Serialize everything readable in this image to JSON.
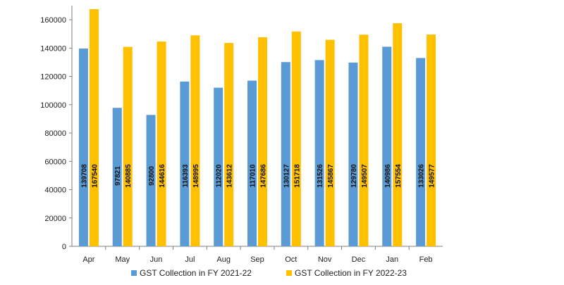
{
  "chart_data": {
    "type": "bar",
    "categories": [
      "Apr",
      "May",
      "Jun",
      "Jul",
      "Aug",
      "Sep",
      "Oct",
      "Nov",
      "Dec",
      "Jan",
      "Feb"
    ],
    "series": [
      {
        "name": "GST Collection in FY 2021-22",
        "color": "#5b9bd5",
        "values": [
          139708,
          97821,
          92800,
          116393,
          112020,
          117010,
          130127,
          131526,
          129780,
          140986,
          133026
        ],
        "labels": [
          "139708",
          "97821",
          "92800",
          "116393",
          "112020",
          "117010",
          "130127",
          "131526",
          "129780",
          "140986",
          "133026"
        ]
      },
      {
        "name": "GST Collection in FY 2022-23",
        "color": "#ffc000",
        "values": [
          167540,
          140885,
          144616,
          148995,
          143612,
          147686,
          151718,
          145867,
          149507,
          157554,
          149577
        ],
        "labels": [
          "167540",
          "140885",
          "144616",
          "148995",
          "143612",
          "147686",
          "151718",
          "145867",
          "149507",
          "157554",
          "149577"
        ]
      }
    ],
    "yticks": [
      "0",
      "20000",
      "40000",
      "60000",
      "80000",
      "100000",
      "120000",
      "140000",
      "160000"
    ],
    "ylim": [
      0,
      170000
    ],
    "grid": false,
    "legend_position": "bottom"
  }
}
